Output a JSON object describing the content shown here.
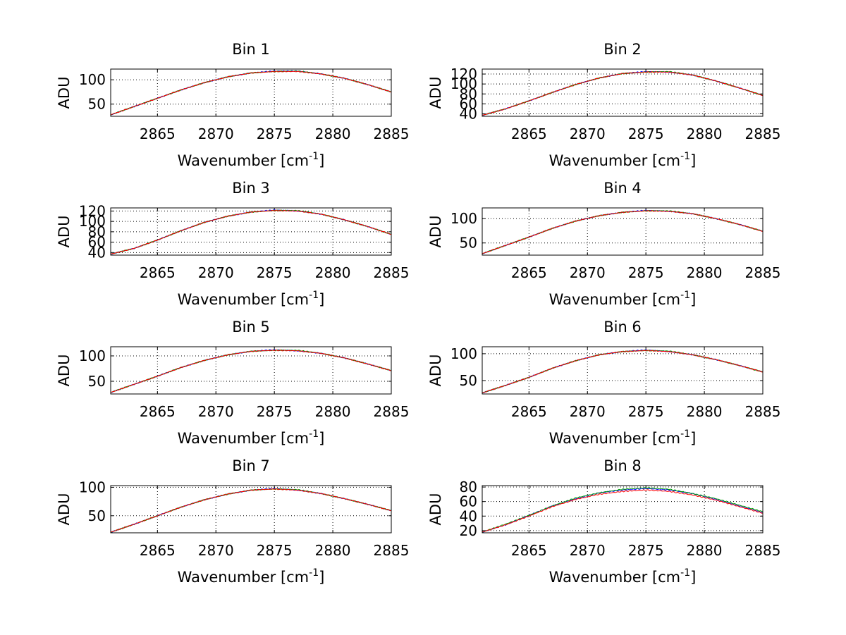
{
  "chart_data": [
    {
      "type": "line",
      "title": "Bin 1",
      "xlabel": "Wavenumber [cm",
      "xlabel_superscript": "-1",
      "xlabel_suffix": "]",
      "ylabel": "ADU",
      "xlim": [
        2861,
        2885
      ],
      "ylim": [
        25,
        122
      ],
      "xticks": [
        2865,
        2870,
        2875,
        2880,
        2885
      ],
      "yticks": [
        50,
        100
      ],
      "grid": true,
      "series": [
        {
          "name": "overlay-red",
          "color": "#ff0000",
          "x": [
            2861,
            2863,
            2865,
            2867,
            2869,
            2871,
            2873,
            2875,
            2877,
            2879,
            2881,
            2883,
            2885
          ],
          "y": [
            28,
            45,
            62,
            79,
            94,
            106,
            114,
            117,
            117,
            112,
            103,
            90,
            75
          ]
        },
        {
          "name": "overlay-blue",
          "color": "#0000ff",
          "x": [
            2861,
            2863,
            2865,
            2867,
            2869,
            2871,
            2873,
            2875,
            2877,
            2879,
            2881,
            2883,
            2885
          ],
          "y": [
            28,
            45,
            62,
            79,
            94,
            106,
            114,
            118,
            118,
            112,
            103,
            90,
            75
          ]
        },
        {
          "name": "overlay-green",
          "color": "#00a000",
          "x": [
            2861,
            2863,
            2865,
            2867,
            2869,
            2871,
            2873,
            2875,
            2877,
            2879,
            2881,
            2883,
            2885
          ],
          "y": [
            28,
            45,
            62,
            79,
            94,
            106,
            114,
            117,
            118,
            112,
            103,
            90,
            75
          ]
        }
      ]
    },
    {
      "type": "line",
      "title": "Bin 2",
      "xlabel": "Wavenumber [cm",
      "xlabel_superscript": "-1",
      "xlabel_suffix": "]",
      "ylabel": "ADU",
      "xlim": [
        2861,
        2885
      ],
      "ylim": [
        35,
        130
      ],
      "xticks": [
        2865,
        2870,
        2875,
        2880,
        2885
      ],
      "yticks": [
        40,
        60,
        80,
        100,
        120
      ],
      "grid": true,
      "series": [
        {
          "name": "overlay-red",
          "color": "#ff0000",
          "x": [
            2861,
            2863,
            2865,
            2867,
            2869,
            2871,
            2873,
            2875,
            2877,
            2879,
            2881,
            2883,
            2885
          ],
          "y": [
            37,
            50,
            66,
            83,
            99,
            112,
            121,
            124,
            124,
            118,
            106,
            92,
            77
          ]
        },
        {
          "name": "overlay-blue",
          "color": "#0000ff",
          "x": [
            2861,
            2863,
            2865,
            2867,
            2869,
            2871,
            2873,
            2875,
            2877,
            2879,
            2881,
            2883,
            2885
          ],
          "y": [
            37,
            50,
            66,
            83,
            99,
            112,
            121,
            125,
            124,
            118,
            106,
            92,
            77
          ]
        },
        {
          "name": "overlay-green",
          "color": "#00a000",
          "x": [
            2861,
            2863,
            2865,
            2867,
            2869,
            2871,
            2873,
            2875,
            2877,
            2879,
            2881,
            2883,
            2885
          ],
          "y": [
            37,
            50,
            66,
            83,
            99,
            112,
            121,
            124,
            125,
            118,
            106,
            92,
            77
          ]
        }
      ]
    },
    {
      "type": "line",
      "title": "Bin 3",
      "xlabel": "Wavenumber [cm",
      "xlabel_superscript": "-1",
      "xlabel_suffix": "]",
      "ylabel": "ADU",
      "xlim": [
        2861,
        2885
      ],
      "ylim": [
        35,
        126
      ],
      "xticks": [
        2865,
        2870,
        2875,
        2880,
        2885
      ],
      "yticks": [
        40,
        60,
        80,
        100,
        120
      ],
      "grid": true,
      "series": [
        {
          "name": "overlay-red",
          "color": "#ff0000",
          "x": [
            2861,
            2863,
            2865,
            2867,
            2869,
            2871,
            2873,
            2875,
            2877,
            2879,
            2881,
            2883,
            2885
          ],
          "y": [
            37,
            48,
            64,
            82,
            98,
            110,
            118,
            121,
            120,
            114,
            103,
            90,
            75
          ]
        },
        {
          "name": "overlay-blue",
          "color": "#0000ff",
          "x": [
            2861,
            2863,
            2865,
            2867,
            2869,
            2871,
            2873,
            2875,
            2877,
            2879,
            2881,
            2883,
            2885
          ],
          "y": [
            37,
            48,
            64,
            82,
            98,
            110,
            118,
            122,
            120,
            114,
            103,
            90,
            75
          ]
        },
        {
          "name": "overlay-green",
          "color": "#00a000",
          "x": [
            2861,
            2863,
            2865,
            2867,
            2869,
            2871,
            2873,
            2875,
            2877,
            2879,
            2881,
            2883,
            2885
          ],
          "y": [
            37,
            48,
            64,
            82,
            98,
            110,
            118,
            121,
            121,
            114,
            103,
            90,
            75
          ]
        }
      ]
    },
    {
      "type": "line",
      "title": "Bin 4",
      "xlabel": "Wavenumber [cm",
      "xlabel_superscript": "-1",
      "xlabel_suffix": "]",
      "ylabel": "ADU",
      "xlim": [
        2861,
        2885
      ],
      "ylim": [
        25,
        122
      ],
      "xticks": [
        2865,
        2870,
        2875,
        2880,
        2885
      ],
      "yticks": [
        50,
        100
      ],
      "grid": true,
      "series": [
        {
          "name": "overlay-red",
          "color": "#ff0000",
          "x": [
            2861,
            2863,
            2865,
            2867,
            2869,
            2871,
            2873,
            2875,
            2877,
            2879,
            2881,
            2883,
            2885
          ],
          "y": [
            28,
            45,
            62,
            80,
            95,
            106,
            113,
            116,
            115,
            110,
            100,
            88,
            74
          ]
        },
        {
          "name": "overlay-blue",
          "color": "#0000ff",
          "x": [
            2861,
            2863,
            2865,
            2867,
            2869,
            2871,
            2873,
            2875,
            2877,
            2879,
            2881,
            2883,
            2885
          ],
          "y": [
            28,
            45,
            62,
            80,
            95,
            106,
            113,
            117,
            115,
            110,
            100,
            88,
            74
          ]
        },
        {
          "name": "overlay-green",
          "color": "#00a000",
          "x": [
            2861,
            2863,
            2865,
            2867,
            2869,
            2871,
            2873,
            2875,
            2877,
            2879,
            2881,
            2883,
            2885
          ],
          "y": [
            28,
            45,
            62,
            80,
            95,
            106,
            113,
            116,
            116,
            110,
            100,
            88,
            74
          ]
        }
      ]
    },
    {
      "type": "line",
      "title": "Bin 5",
      "xlabel": "Wavenumber [cm",
      "xlabel_superscript": "-1",
      "xlabel_suffix": "]",
      "ylabel": "ADU",
      "xlim": [
        2861,
        2885
      ],
      "ylim": [
        25,
        118
      ],
      "xticks": [
        2865,
        2870,
        2875,
        2880,
        2885
      ],
      "yticks": [
        50,
        100
      ],
      "grid": true,
      "series": [
        {
          "name": "overlay-red",
          "color": "#ff0000",
          "x": [
            2861,
            2863,
            2865,
            2867,
            2869,
            2871,
            2873,
            2875,
            2877,
            2879,
            2881,
            2883,
            2885
          ],
          "y": [
            28,
            44,
            60,
            77,
            91,
            102,
            109,
            111,
            110,
            105,
            96,
            84,
            71
          ]
        },
        {
          "name": "overlay-blue",
          "color": "#0000ff",
          "x": [
            2861,
            2863,
            2865,
            2867,
            2869,
            2871,
            2873,
            2875,
            2877,
            2879,
            2881,
            2883,
            2885
          ],
          "y": [
            28,
            44,
            60,
            77,
            91,
            102,
            109,
            112,
            110,
            105,
            96,
            84,
            71
          ]
        },
        {
          "name": "overlay-green",
          "color": "#00a000",
          "x": [
            2861,
            2863,
            2865,
            2867,
            2869,
            2871,
            2873,
            2875,
            2877,
            2879,
            2881,
            2883,
            2885
          ],
          "y": [
            28,
            44,
            60,
            77,
            91,
            102,
            109,
            111,
            111,
            105,
            96,
            84,
            71
          ]
        }
      ]
    },
    {
      "type": "line",
      "title": "Bin 6",
      "xlabel": "Wavenumber [cm",
      "xlabel_superscript": "-1",
      "xlabel_suffix": "]",
      "ylabel": "ADU",
      "xlim": [
        2861,
        2885
      ],
      "ylim": [
        25,
        113
      ],
      "xticks": [
        2865,
        2870,
        2875,
        2880,
        2885
      ],
      "yticks": [
        50,
        100
      ],
      "grid": true,
      "series": [
        {
          "name": "overlay-red",
          "color": "#ff0000",
          "x": [
            2861,
            2863,
            2865,
            2867,
            2869,
            2871,
            2873,
            2875,
            2877,
            2879,
            2881,
            2883,
            2885
          ],
          "y": [
            27,
            41,
            56,
            73,
            87,
            98,
            104,
            106,
            104,
            98,
            89,
            78,
            66
          ]
        },
        {
          "name": "overlay-blue",
          "color": "#0000ff",
          "x": [
            2861,
            2863,
            2865,
            2867,
            2869,
            2871,
            2873,
            2875,
            2877,
            2879,
            2881,
            2883,
            2885
          ],
          "y": [
            27,
            41,
            56,
            73,
            87,
            98,
            104,
            107,
            104,
            98,
            89,
            78,
            66
          ]
        },
        {
          "name": "overlay-green",
          "color": "#00a000",
          "x": [
            2861,
            2863,
            2865,
            2867,
            2869,
            2871,
            2873,
            2875,
            2877,
            2879,
            2881,
            2883,
            2885
          ],
          "y": [
            27,
            41,
            56,
            73,
            87,
            98,
            104,
            106,
            105,
            98,
            89,
            78,
            66
          ]
        }
      ]
    },
    {
      "type": "line",
      "title": "Bin 7",
      "xlabel": "Wavenumber [cm",
      "xlabel_superscript": "-1",
      "xlabel_suffix": "]",
      "ylabel": "ADU",
      "xlim": [
        2861,
        2885
      ],
      "ylim": [
        20,
        103
      ],
      "xticks": [
        2865,
        2870,
        2875,
        2880,
        2885
      ],
      "yticks": [
        50,
        100
      ],
      "grid": true,
      "series": [
        {
          "name": "overlay-red",
          "color": "#ff0000",
          "x": [
            2861,
            2863,
            2865,
            2867,
            2869,
            2871,
            2873,
            2875,
            2877,
            2879,
            2881,
            2883,
            2885
          ],
          "y": [
            21,
            35,
            50,
            65,
            78,
            88,
            95,
            97,
            95,
            89,
            80,
            70,
            59
          ]
        },
        {
          "name": "overlay-blue",
          "color": "#0000ff",
          "x": [
            2861,
            2863,
            2865,
            2867,
            2869,
            2871,
            2873,
            2875,
            2877,
            2879,
            2881,
            2883,
            2885
          ],
          "y": [
            21,
            35,
            50,
            65,
            78,
            88,
            95,
            98,
            95,
            89,
            80,
            70,
            59
          ]
        },
        {
          "name": "overlay-green",
          "color": "#00a000",
          "x": [
            2861,
            2863,
            2865,
            2867,
            2869,
            2871,
            2873,
            2875,
            2877,
            2879,
            2881,
            2883,
            2885
          ],
          "y": [
            21,
            35,
            50,
            65,
            78,
            88,
            95,
            97,
            96,
            89,
            80,
            70,
            59
          ]
        }
      ]
    },
    {
      "type": "line",
      "title": "Bin 8",
      "xlabel": "Wavenumber [cm",
      "xlabel_superscript": "-1",
      "xlabel_suffix": "]",
      "ylabel": "ADU",
      "xlim": [
        2861,
        2885
      ],
      "ylim": [
        17,
        82
      ],
      "xticks": [
        2865,
        2870,
        2875,
        2880,
        2885
      ],
      "yticks": [
        20,
        40,
        60,
        80
      ],
      "grid": true,
      "series": [
        {
          "name": "overlay-red",
          "color": "#ff0000",
          "x": [
            2861,
            2863,
            2865,
            2867,
            2869,
            2871,
            2873,
            2875,
            2877,
            2879,
            2881,
            2883,
            2885
          ],
          "y": [
            18,
            28,
            40,
            53,
            63,
            70,
            74,
            76,
            74,
            69,
            62,
            53,
            44
          ]
        },
        {
          "name": "overlay-blue",
          "color": "#0000ff",
          "x": [
            2861,
            2863,
            2865,
            2867,
            2869,
            2871,
            2873,
            2875,
            2877,
            2879,
            2881,
            2883,
            2885
          ],
          "y": [
            18,
            28,
            41,
            54,
            64,
            72,
            76,
            78,
            76,
            71,
            63,
            54,
            45
          ]
        },
        {
          "name": "overlay-green",
          "color": "#00a000",
          "x": [
            2861,
            2863,
            2865,
            2867,
            2869,
            2871,
            2873,
            2875,
            2877,
            2879,
            2881,
            2883,
            2885
          ],
          "y": [
            18,
            29,
            41,
            54,
            65,
            72,
            77,
            79,
            77,
            71,
            64,
            55,
            46
          ]
        }
      ]
    }
  ]
}
